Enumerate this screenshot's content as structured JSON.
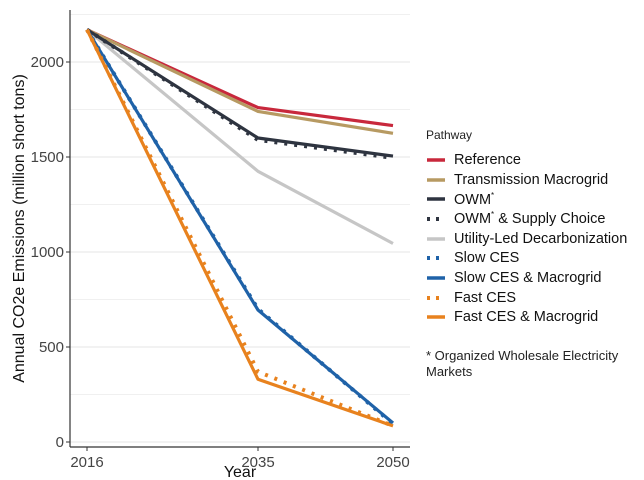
{
  "chart_data": {
    "type": "line",
    "x": [
      2016,
      2035,
      2050
    ],
    "xlabel": "Year",
    "ylabel": "Annual CO2e Emissions (million short tons)",
    "xlim": [
      2016,
      2050
    ],
    "ylim": [
      0,
      2300
    ],
    "yticks": [
      0,
      500,
      1000,
      1500,
      2000
    ],
    "ytick_labels": [
      "0",
      "500",
      "1000",
      "1500",
      "2000"
    ],
    "xticks": [
      2016,
      2035,
      2050
    ],
    "xtick_labels": [
      "2016",
      "2035",
      "2050"
    ],
    "grid": true,
    "legend_position": "right",
    "legend_title": "Pathway",
    "series": [
      {
        "name": "Reference",
        "values": [
          2170,
          1760,
          1665
        ],
        "color": "#c8283c",
        "style": "solid"
      },
      {
        "name": "Transmission Macrogrid",
        "values": [
          2170,
          1740,
          1625
        ],
        "color": "#b79a62",
        "style": "solid"
      },
      {
        "name": "OWM",
        "values": [
          2170,
          1600,
          1505
        ],
        "color": "#2e3440",
        "style": "solid"
      },
      {
        "name": "OWM & Supply Choice",
        "values": [
          2170,
          1590,
          1495
        ],
        "color": "#2e3440",
        "style": "dotted"
      },
      {
        "name": "Utility-Led Decarbonization",
        "values": [
          2170,
          1425,
          1045
        ],
        "color": "#c6c6c6",
        "style": "solid"
      },
      {
        "name": "Slow CES",
        "values": [
          2170,
          700,
          95
        ],
        "color": "#1f62a8",
        "style": "dotted"
      },
      {
        "name": "Slow CES & Macrogrid",
        "values": [
          2170,
          695,
          100
        ],
        "color": "#1f62a8",
        "style": "solid"
      },
      {
        "name": "Fast CES",
        "values": [
          2170,
          370,
          85
        ],
        "color": "#e8821e",
        "style": "dotted"
      },
      {
        "name": "Fast CES & Macrogrid",
        "values": [
          2170,
          330,
          85
        ],
        "color": "#e8821e",
        "style": "solid"
      }
    ],
    "legend_superscripts": {
      "OWM": "*",
      "OWM & Supply Choice": "*"
    },
    "footnote": "* Organized Wholesale Electricity Markets"
  }
}
